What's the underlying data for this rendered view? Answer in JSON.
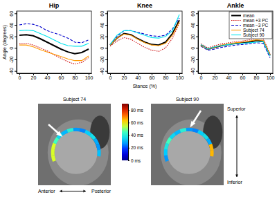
{
  "chart_data": [
    {
      "type": "line",
      "title": "Hip",
      "y_label": "Angle (degrees)",
      "x": [
        0,
        10,
        20,
        30,
        40,
        50,
        60,
        70,
        80,
        90,
        100
      ],
      "xlim": [
        -4,
        104
      ],
      "xticks": [
        0,
        20,
        40,
        60,
        80,
        100
      ],
      "ylim": [
        -44,
        64
      ],
      "yticks": [
        -40,
        -20,
        0,
        20,
        40,
        60
      ],
      "series": [
        {
          "name": "mean",
          "color": "#000000",
          "line_style": "solid",
          "values": [
            22,
            23,
            21,
            16,
            10,
            4,
            -2,
            -7,
            -10,
            -8,
            -2
          ]
        },
        {
          "name": "mean +3 PC",
          "color": "#cc0000",
          "line_style": "dotted",
          "values": [
            7,
            8,
            5,
            0,
            -5,
            -12,
            -18,
            -24,
            -28,
            -25,
            -17
          ]
        },
        {
          "name": "mean −3 PC",
          "color": "#0000cc",
          "line_style": "dashed",
          "values": [
            40,
            42,
            41,
            37,
            30,
            26,
            22,
            17,
            10,
            9,
            14
          ]
        },
        {
          "name": "Subject 74",
          "color": "#ff9900",
          "line_style": "solid",
          "values": [
            5,
            5,
            2,
            -3,
            -7,
            -11,
            -15,
            -19,
            -22,
            -22,
            -14
          ]
        },
        {
          "name": "Subject 90",
          "color": "#00e5ee",
          "line_style": "solid",
          "values": [
            30,
            31,
            30,
            25,
            20,
            14,
            8,
            4,
            3,
            3,
            8
          ]
        }
      ]
    },
    {
      "type": "line",
      "title": "Knee",
      "x_label": "Stance (%)",
      "x": [
        0,
        10,
        20,
        30,
        40,
        50,
        60,
        70,
        80,
        90,
        100
      ],
      "xlim": [
        -4,
        104
      ],
      "xticks": [
        0,
        20,
        40,
        60,
        80,
        100
      ],
      "ylim": [
        -44,
        64
      ],
      "yticks": [
        -40,
        -20,
        0,
        20,
        40,
        60
      ],
      "series": [
        {
          "name": "mean",
          "color": "#000000",
          "line_style": "solid",
          "values": [
            5,
            17,
            25,
            23,
            16,
            10,
            6,
            5,
            10,
            25,
            48
          ]
        },
        {
          "name": "mean +3 PC",
          "color": "#cc0000",
          "line_style": "dotted",
          "values": [
            3,
            12,
            18,
            15,
            8,
            1,
            -4,
            -6,
            0,
            17,
            43
          ]
        },
        {
          "name": "mean −3 PC",
          "color": "#0000cc",
          "line_style": "dashed",
          "values": [
            6,
            20,
            30,
            30,
            27,
            24,
            21,
            20,
            22,
            33,
            52
          ]
        },
        {
          "name": "Subject 74",
          "color": "#ff9900",
          "line_style": "solid",
          "values": [
            5,
            17,
            24,
            22,
            15,
            9,
            5,
            4,
            8,
            22,
            45
          ]
        },
        {
          "name": "Subject 90",
          "color": "#00e5ee",
          "line_style": "solid",
          "values": [
            6,
            22,
            30,
            30,
            26,
            22,
            18,
            17,
            20,
            30,
            58
          ]
        }
      ]
    },
    {
      "type": "line",
      "title": "Ankle",
      "legend": "top-right",
      "x": [
        0,
        10,
        20,
        30,
        40,
        50,
        60,
        70,
        80,
        90,
        100
      ],
      "xlim": [
        -4,
        104
      ],
      "xticks": [
        0,
        20,
        40,
        60,
        80,
        100
      ],
      "ylim": [
        -44,
        64
      ],
      "yticks": [
        -40,
        -20,
        0,
        20,
        40,
        60
      ],
      "series": [
        {
          "name": "mean",
          "color": "#000000",
          "line_style": "solid",
          "values": [
            5,
            -2,
            1,
            4,
            6,
            8,
            9,
            10,
            13,
            12,
            -13
          ]
        },
        {
          "name": "mean +3 PC",
          "color": "#cc0000",
          "line_style": "dotted",
          "values": [
            7,
            0,
            4,
            7,
            9,
            11,
            12,
            14,
            17,
            16,
            -10
          ]
        },
        {
          "name": "mean −3 PC",
          "color": "#0000cc",
          "line_style": "dashed",
          "values": [
            3,
            -4,
            -2,
            1,
            3,
            5,
            6,
            7,
            9,
            8,
            -17
          ]
        },
        {
          "name": "Subject 74",
          "color": "#ff9900",
          "line_style": "solid",
          "values": [
            4,
            -2,
            1,
            5,
            7,
            9,
            10,
            12,
            14,
            13,
            -12
          ]
        },
        {
          "name": "Subject 90",
          "color": "#00e5ee",
          "line_style": "solid",
          "values": [
            6,
            -2,
            2,
            4,
            6,
            7,
            8,
            9,
            10,
            11,
            -14
          ]
        }
      ]
    }
  ],
  "images": {
    "panels": [
      {
        "title": "Subject 74"
      },
      {
        "title": "Subject 90"
      }
    ],
    "colorbar": {
      "range": [
        0,
        90
      ],
      "ticks": [
        {
          "value": 0,
          "label": "0 ms"
        },
        {
          "value": 20,
          "label": "20 ms"
        },
        {
          "value": 40,
          "label": "40 ms"
        },
        {
          "value": 60,
          "label": "60 ms"
        },
        {
          "value": 80,
          "label": "80 ms"
        }
      ]
    },
    "labels": {
      "anterior": "Anterior",
      "posterior": "Posterior",
      "superior": "Superior",
      "inferior": "Inferior"
    }
  }
}
